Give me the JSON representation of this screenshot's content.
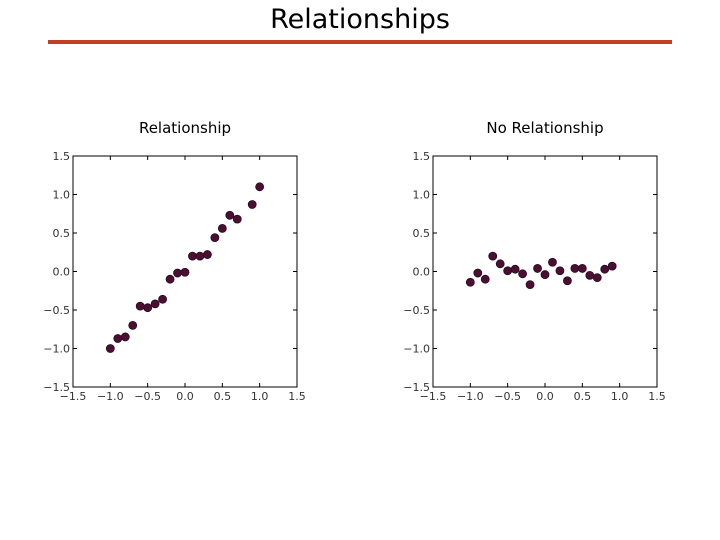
{
  "slide": {
    "title": "Relationships",
    "accent_color": "#c0401f"
  },
  "chart_data": [
    {
      "type": "scatter",
      "title": "Relationship",
      "xlabel": "",
      "ylabel": "",
      "xlim": [
        -1.5,
        1.5
      ],
      "ylim": [
        -1.5,
        1.5
      ],
      "xticks": [
        "−1.5",
        "−1.0",
        "−0.5",
        "0.0",
        "0.5",
        "1.0",
        "1.5"
      ],
      "yticks": [
        "−1.5",
        "−1.0",
        "−0.5",
        "0.0",
        "0.5",
        "1.0",
        "1.5"
      ],
      "grid": false,
      "marker_color": "#4a0f33",
      "points": [
        [
          -1.0,
          -1.0
        ],
        [
          -0.9,
          -0.87
        ],
        [
          -0.8,
          -0.85
        ],
        [
          -0.7,
          -0.7
        ],
        [
          -0.6,
          -0.45
        ],
        [
          -0.5,
          -0.47
        ],
        [
          -0.4,
          -0.42
        ],
        [
          -0.3,
          -0.36
        ],
        [
          -0.2,
          -0.1
        ],
        [
          -0.1,
          -0.02
        ],
        [
          0.0,
          -0.01
        ],
        [
          0.1,
          0.2
        ],
        [
          0.2,
          0.2
        ],
        [
          0.3,
          0.22
        ],
        [
          0.4,
          0.44
        ],
        [
          0.5,
          0.56
        ],
        [
          0.6,
          0.73
        ],
        [
          0.7,
          0.68
        ],
        [
          0.9,
          0.87
        ],
        [
          1.0,
          1.1
        ]
      ]
    },
    {
      "type": "scatter",
      "title": "No Relationship",
      "xlabel": "",
      "ylabel": "",
      "xlim": [
        -1.5,
        1.5
      ],
      "ylim": [
        -1.5,
        1.5
      ],
      "xticks": [
        "−1.5",
        "−1.0",
        "−0.5",
        "0.0",
        "0.5",
        "1.0",
        "1.5"
      ],
      "yticks": [
        "−1.5",
        "−1.0",
        "−0.5",
        "0.0",
        "0.5",
        "1.0",
        "1.5"
      ],
      "grid": false,
      "marker_color": "#4a0f33",
      "points": [
        [
          -1.0,
          -0.14
        ],
        [
          -0.9,
          -0.02
        ],
        [
          -0.8,
          -0.1
        ],
        [
          -0.7,
          0.2
        ],
        [
          -0.6,
          0.1
        ],
        [
          -0.5,
          0.01
        ],
        [
          -0.4,
          0.03
        ],
        [
          -0.3,
          -0.03
        ],
        [
          -0.2,
          -0.17
        ],
        [
          -0.1,
          0.04
        ],
        [
          0.0,
          -0.04
        ],
        [
          0.1,
          0.12
        ],
        [
          0.2,
          0.01
        ],
        [
          0.3,
          -0.12
        ],
        [
          0.4,
          0.04
        ],
        [
          0.5,
          0.04
        ],
        [
          0.6,
          -0.05
        ],
        [
          0.7,
          -0.08
        ],
        [
          0.8,
          0.03
        ],
        [
          0.9,
          0.07
        ]
      ]
    }
  ]
}
